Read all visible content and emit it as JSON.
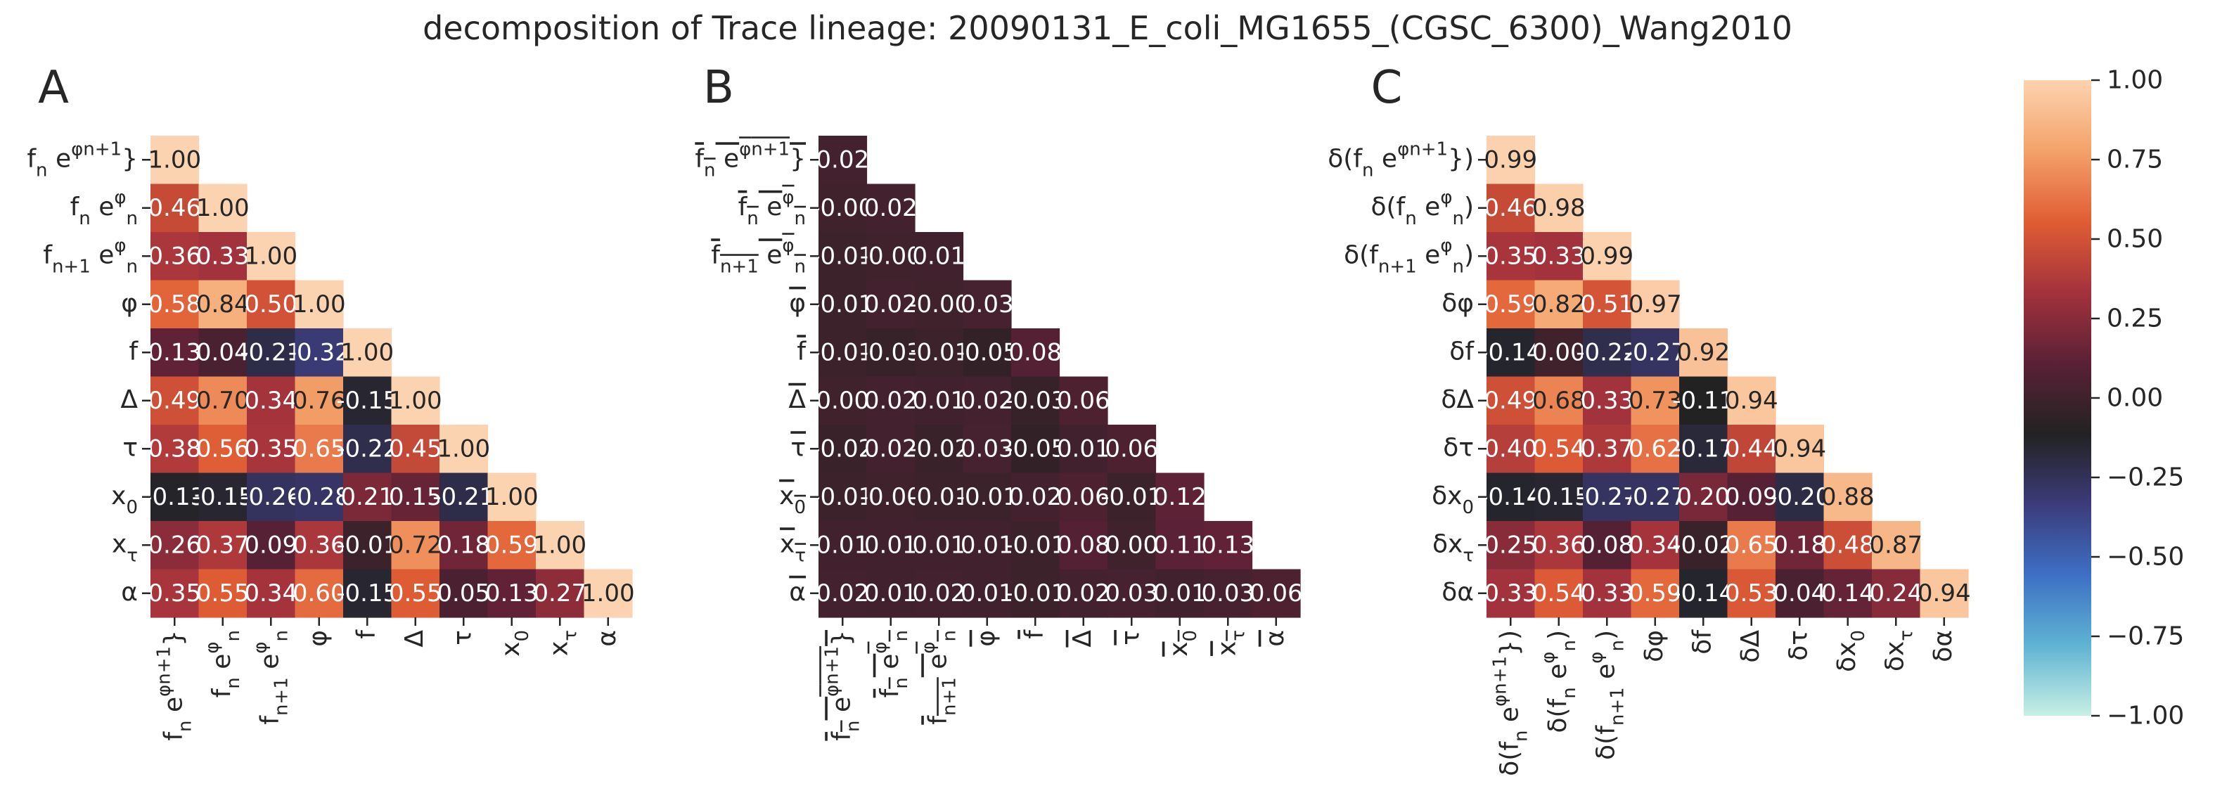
{
  "title": "decomposition of Trace lineage: 20090131_E_coli_MG1655_(CGSC_6300)_Wang2010",
  "colorbar": {
    "range": [
      -1.0,
      1.0
    ],
    "ticks": [
      "1.00",
      "0.75",
      "0.50",
      "0.25",
      "0.00",
      "−0.25",
      "−0.50",
      "−0.75",
      "−1.00"
    ],
    "tick_values": [
      1.0,
      0.75,
      0.5,
      0.25,
      0.0,
      -0.25,
      -0.5,
      -0.75,
      -1.0
    ],
    "colormap": "icefire",
    "colors": [
      "#c8efe4",
      "#5fb3d3",
      "#3d6fc4",
      "#3c3b7a",
      "#222222",
      "#5b2136",
      "#a3323c",
      "#e05d34",
      "#f4a26a",
      "#fcd3b0"
    ]
  },
  "chart_data": [
    {
      "type": "heatmap",
      "panel_label": "A",
      "rows": [
        "f_n e^{φ_{n+1}}",
        "f_n e^{φ_n}",
        "f_{n+1} e^{φ_n}",
        "φ",
        "f",
        "Δ",
        "τ",
        "x_0",
        "x_τ",
        "α"
      ],
      "cols": [
        "f_n e^{φ_{n+1}}",
        "f_n e^{φ_n}",
        "f_{n+1} e^{φ_n}",
        "φ",
        "f",
        "Δ",
        "τ",
        "x_0",
        "x_τ",
        "α"
      ],
      "values": [
        [
          "1.00"
        ],
        [
          "0.46",
          "1.00"
        ],
        [
          "0.36",
          "0.33",
          "1.00"
        ],
        [
          "0.58",
          "0.84",
          "0.50",
          "1.00"
        ],
        [
          "0.13",
          "0.04",
          "-0.21",
          "-0.32",
          "1.00"
        ],
        [
          "0.49",
          "0.70",
          "0.34",
          "0.76",
          "-0.15",
          "1.00"
        ],
        [
          "0.38",
          "0.56",
          "0.35",
          "0.65",
          "-0.22",
          "0.45",
          "1.00"
        ],
        [
          "-0.13",
          "-0.15",
          "-0.26",
          "-0.28",
          "0.21",
          "0.15",
          "-0.21",
          "1.00"
        ],
        [
          "0.26",
          "0.37",
          "0.09",
          "0.36",
          "-0.01",
          "0.72",
          "0.18",
          "0.59",
          "1.00"
        ],
        [
          "0.35",
          "0.55",
          "0.34",
          "0.60",
          "-0.15",
          "0.55",
          "0.05",
          "0.13",
          "0.27",
          "1.00"
        ]
      ],
      "vmin": -1.0,
      "vmax": 1.0,
      "mask": "upper-triangle"
    },
    {
      "type": "heatmap",
      "panel_label": "B",
      "rows": [
        "bar(f_n e^{φ_{n+1}})",
        "bar(f_n e^{φ_n})",
        "bar(f_{n+1} e^{φ_n})",
        "bar(φ)",
        "bar(f)",
        "bar(Δ)",
        "bar(τ)",
        "bar(x_0)",
        "bar(x_τ)",
        "bar(α)"
      ],
      "cols": [
        "bar(f_n e^{φ_{n+1}})",
        "bar(f_n e^{φ_n})",
        "bar(f_{n+1} e^{φ_n})",
        "bar(φ)",
        "bar(f)",
        "bar(Δ)",
        "bar(τ)",
        "bar(x_0)",
        "bar(x_τ)",
        "bar(α)"
      ],
      "values": [
        [
          "0.02"
        ],
        [
          "-0.00",
          "0.02"
        ],
        [
          "-0.01",
          "-0.00",
          "0.01"
        ],
        [
          "-0.01",
          "0.02",
          "-0.00",
          "0.03"
        ],
        [
          "-0.01",
          "-0.03",
          "-0.01",
          "-0.05",
          "0.08"
        ],
        [
          "0.00",
          "0.02",
          "0.01",
          "0.02",
          "-0.03",
          "0.06"
        ],
        [
          "-0.02",
          "0.02",
          "-0.02",
          "0.03",
          "-0.05",
          "0.01",
          "0.06"
        ],
        [
          "-0.01",
          "-0.00",
          "-0.01",
          "-0.01",
          "0.02",
          "0.06",
          "-0.01",
          "0.12"
        ],
        [
          "0.01",
          "0.01",
          "0.01",
          "0.01",
          "-0.01",
          "0.08",
          "0.00",
          "0.11",
          "0.13"
        ],
        [
          "0.02",
          "0.01",
          "0.02",
          "0.01",
          "-0.01",
          "0.02",
          "0.03",
          "0.01",
          "0.03",
          "0.06"
        ]
      ],
      "vmin": -1.0,
      "vmax": 1.0,
      "mask": "upper-triangle"
    },
    {
      "type": "heatmap",
      "panel_label": "C",
      "rows": [
        "δ(f_n e^{φ_{n+1}})",
        "δ(f_n e^{φ_n})",
        "δ(f_{n+1} e^{φ_n})",
        "δφ",
        "δf",
        "δΔ",
        "δτ",
        "δx_0",
        "δx_τ",
        "δα"
      ],
      "cols": [
        "δ(f_n e^{φ_{n+1}})",
        "δ(f_n e^{φ_n})",
        "δ(f_{n+1} e^{φ_n})",
        "δφ",
        "δf",
        "δΔ",
        "δτ",
        "δx_0",
        "δx_τ",
        "δα"
      ],
      "values": [
        [
          "0.99"
        ],
        [
          "0.46",
          "0.98"
        ],
        [
          "0.35",
          "0.33",
          "0.99"
        ],
        [
          "0.59",
          "0.82",
          "0.51",
          "0.97"
        ],
        [
          "-0.14",
          "0.00",
          "-0.22",
          "-0.27",
          "0.92"
        ],
        [
          "0.49",
          "0.68",
          "0.33",
          "0.73",
          "-0.11",
          "0.94"
        ],
        [
          "0.40",
          "0.54",
          "0.37",
          "0.62",
          "-0.17",
          "0.44",
          "0.94"
        ],
        [
          "-0.14",
          "-0.15",
          "-0.27",
          "-0.27",
          "0.20",
          "0.09",
          "-0.20",
          "0.88"
        ],
        [
          "0.25",
          "0.36",
          "0.08",
          "0.34",
          "-0.02",
          "0.65",
          "0.18",
          "0.48",
          "0.87"
        ],
        [
          "0.33",
          "0.54",
          "0.33",
          "0.59",
          "-0.14",
          "0.53",
          "0.04",
          "0.14",
          "0.24",
          "0.94"
        ]
      ],
      "vmin": -1.0,
      "vmax": 1.0,
      "mask": "upper-triangle"
    }
  ]
}
